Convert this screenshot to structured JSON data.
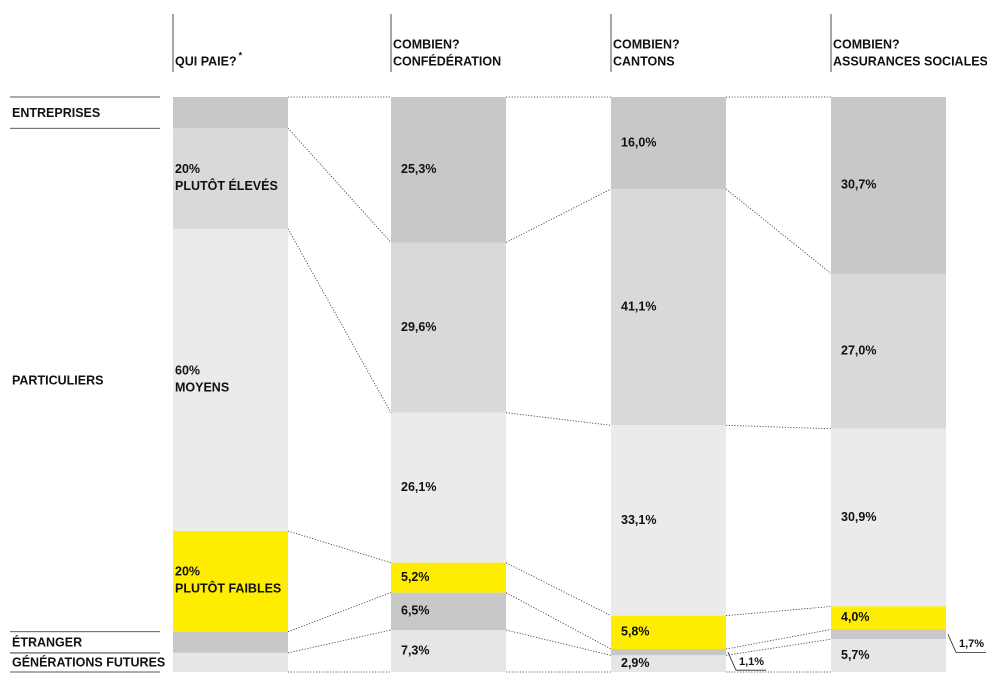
{
  "chart_data": {
    "type": "stacked_column",
    "columns": [
      {
        "title": [
          "QUI PAIE?"
        ],
        "note": "*"
      },
      {
        "title": [
          "COMBIEN?",
          "CONFÉDÉRATION"
        ]
      },
      {
        "title": [
          "COMBIEN?",
          "CANTONS"
        ]
      },
      {
        "title": [
          "COMBIEN?",
          "ASSURANCES SOCIALES"
        ]
      }
    ],
    "groups": [
      "ENTREPRISES",
      "PARTICULIERS",
      "ÉTRANGER",
      "GÉNÉRATIONS FUTURES"
    ],
    "series": [
      {
        "color": "#c8c8c8",
        "values": [
          6.2,
          25.3,
          16.0,
          30.7
        ],
        "value_labels": [
          null,
          "25,3%",
          "16,0%",
          "30,7%"
        ]
      },
      {
        "name": "PLUTÔT ÉLEVÉS",
        "color": "#d9d9d9",
        "values": [
          20,
          29.6,
          41.1,
          27.0
        ],
        "value_labels": [
          "20%",
          "29,6%",
          "41,1%",
          "27,0%"
        ]
      },
      {
        "name": "MOYENS",
        "color": "#ebebeb",
        "values": [
          60,
          26.1,
          33.1,
          30.9
        ],
        "value_labels": [
          "60%",
          "26,1%",
          "33,1%",
          "30,9%"
        ]
      },
      {
        "name": "PLUTÔT FAIBLES",
        "color": "#ffed00",
        "values": [
          20,
          5.2,
          5.8,
          4.0
        ],
        "value_labels": [
          "20%",
          "5,2%",
          "5,8%",
          "4,0%"
        ]
      },
      {
        "color": "#c8c8c8",
        "values": [
          4.2,
          6.5,
          1.1,
          1.7
        ],
        "value_labels": [
          null,
          "6,5%",
          "1,1%",
          "1,7%"
        ]
      },
      {
        "color": "#e6e6e6",
        "values": [
          3.8,
          7.3,
          2.9,
          5.7
        ],
        "value_labels": [
          null,
          "7,3%",
          "2,9%",
          "5,7%"
        ]
      }
    ]
  }
}
